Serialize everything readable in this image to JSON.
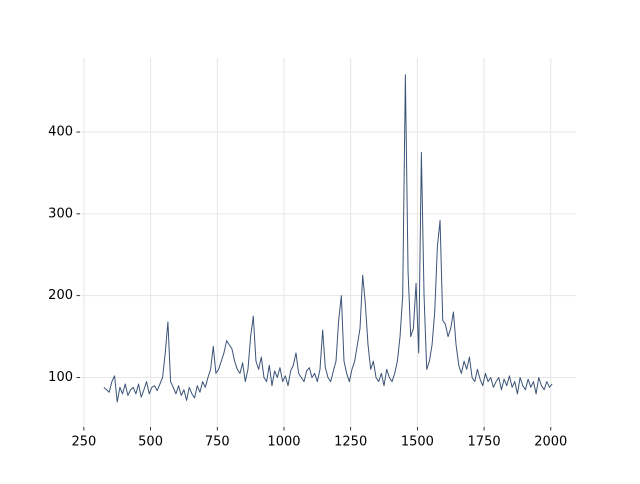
{
  "chart_data": {
    "type": "line",
    "x": [
      325,
      335,
      345,
      355,
      365,
      375,
      385,
      395,
      405,
      415,
      425,
      435,
      445,
      455,
      465,
      475,
      485,
      495,
      505,
      515,
      525,
      535,
      545,
      555,
      565,
      575,
      585,
      595,
      605,
      615,
      625,
      635,
      645,
      655,
      665,
      675,
      685,
      695,
      705,
      715,
      725,
      735,
      745,
      755,
      765,
      775,
      785,
      795,
      805,
      815,
      825,
      835,
      845,
      855,
      865,
      875,
      885,
      895,
      905,
      915,
      925,
      935,
      945,
      955,
      965,
      975,
      985,
      995,
      1005,
      1015,
      1025,
      1035,
      1045,
      1055,
      1065,
      1075,
      1085,
      1095,
      1105,
      1115,
      1125,
      1135,
      1145,
      1155,
      1165,
      1175,
      1185,
      1195,
      1205,
      1215,
      1225,
      1235,
      1245,
      1255,
      1265,
      1275,
      1285,
      1295,
      1305,
      1315,
      1325,
      1335,
      1345,
      1355,
      1365,
      1375,
      1385,
      1395,
      1405,
      1415,
      1425,
      1435,
      1445,
      1455,
      1465,
      1475,
      1485,
      1495,
      1505,
      1515,
      1525,
      1535,
      1545,
      1555,
      1565,
      1575,
      1585,
      1595,
      1605,
      1615,
      1625,
      1635,
      1645,
      1655,
      1665,
      1675,
      1685,
      1695,
      1705,
      1715,
      1725,
      1735,
      1745,
      1755,
      1765,
      1775,
      1785,
      1795,
      1805,
      1815,
      1825,
      1835,
      1845,
      1855,
      1865,
      1875,
      1885,
      1895,
      1905,
      1915,
      1925,
      1935,
      1945,
      1955,
      1965,
      1975,
      1985,
      1995,
      2005
    ],
    "series": [
      {
        "color": "#3b5478",
        "values": [
          88,
          85,
          82,
          95,
          102,
          70,
          88,
          80,
          92,
          78,
          85,
          88,
          80,
          92,
          76,
          85,
          95,
          80,
          88,
          90,
          84,
          92,
          100,
          130,
          168,
          95,
          88,
          80,
          90,
          78,
          85,
          72,
          88,
          80,
          75,
          90,
          82,
          95,
          88,
          100,
          110,
          138,
          105,
          110,
          120,
          130,
          145,
          140,
          135,
          120,
          110,
          105,
          118,
          95,
          110,
          150,
          175,
          120,
          110,
          125,
          100,
          95,
          115,
          90,
          108,
          100,
          112,
          95,
          102,
          90,
          108,
          115,
          130,
          105,
          100,
          95,
          108,
          112,
          100,
          105,
          95,
          110,
          158,
          112,
          100,
          95,
          108,
          120,
          170,
          200,
          120,
          105,
          95,
          110,
          120,
          140,
          160,
          225,
          190,
          140,
          110,
          120,
          100,
          95,
          105,
          90,
          110,
          100,
          95,
          105,
          120,
          150,
          200,
          470,
          230,
          150,
          160,
          215,
          130,
          375,
          200,
          110,
          120,
          140,
          180,
          260,
          292,
          170,
          165,
          150,
          160,
          180,
          140,
          115,
          105,
          120,
          110,
          125,
          100,
          95,
          110,
          98,
          90,
          105,
          95,
          100,
          88,
          95,
          100,
          85,
          98,
          90,
          102,
          88,
          95,
          80,
          100,
          90,
          85,
          98,
          88,
          95,
          80,
          100,
          90,
          85,
          95,
          88,
          92
        ]
      }
    ],
    "xlim": [
      235.5,
      2094.5
    ],
    "ylim": [
      39.5,
      490.5
    ],
    "xticks": [
      250,
      500,
      750,
      1000,
      1250,
      1500,
      1750,
      2000
    ],
    "yticks": [
      100,
      200,
      300,
      400
    ],
    "grid": true
  }
}
